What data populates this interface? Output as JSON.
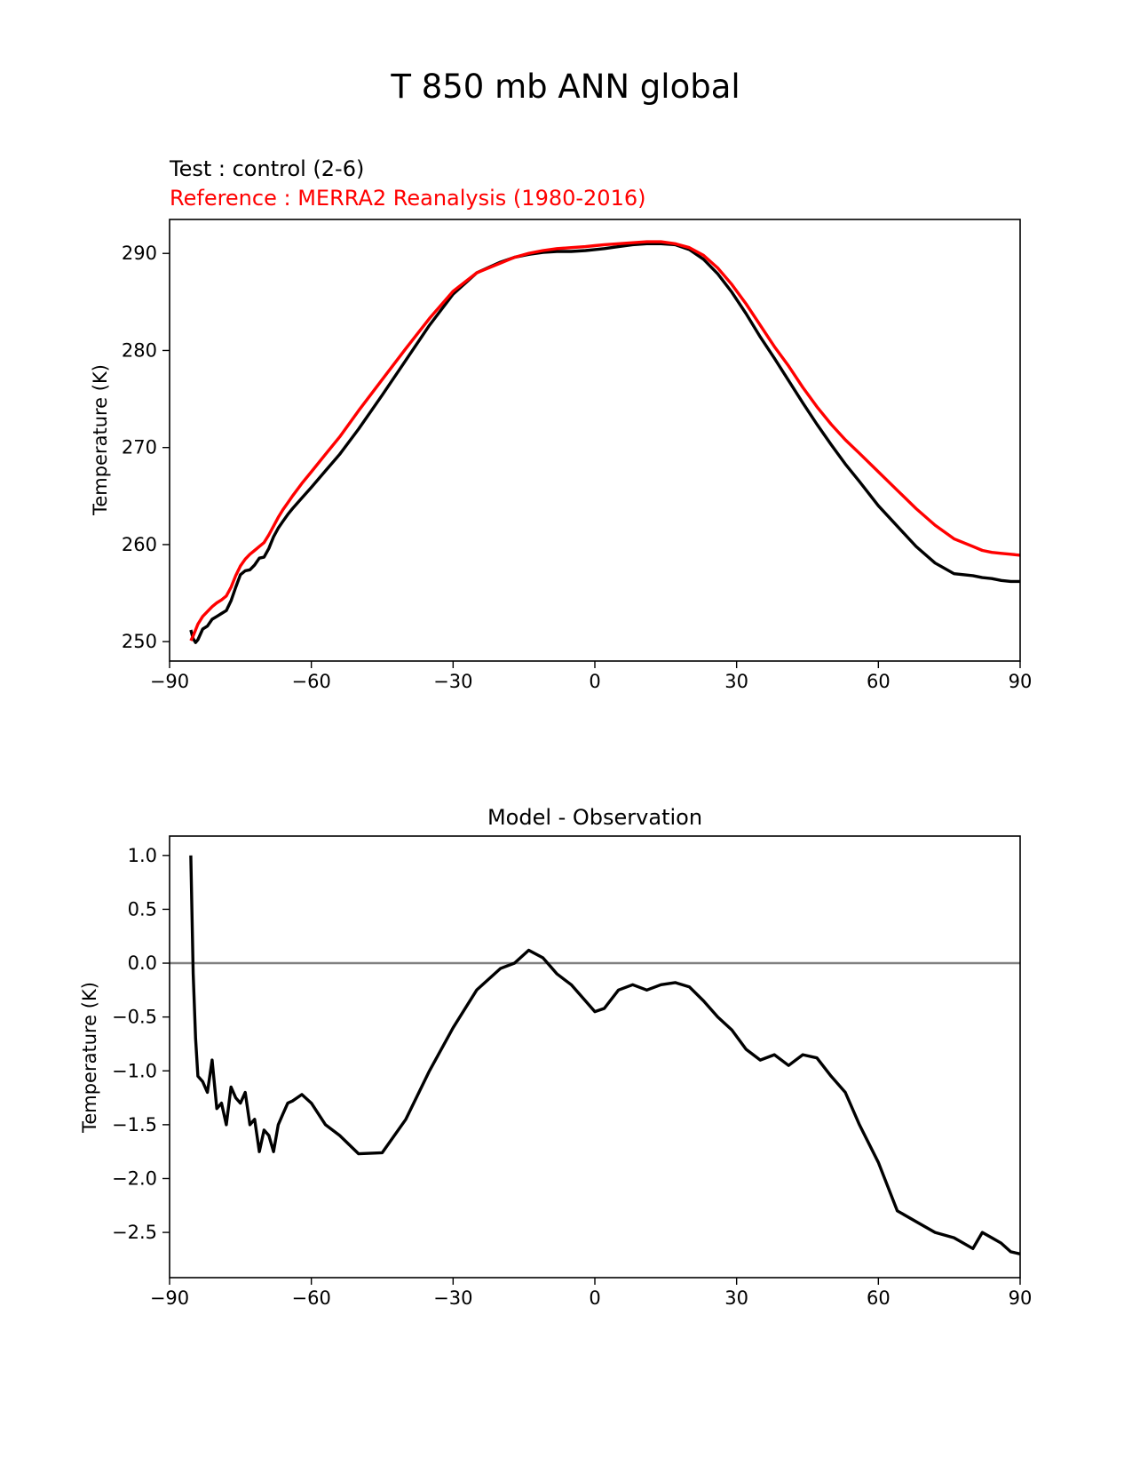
{
  "suptitle": "T 850 mb ANN global",
  "chart_data": [
    {
      "type": "line",
      "test_label": "Test : control (2-6)",
      "reference_label": "Reference : MERRA2 Reanalysis (1980-2016)",
      "xlabel": "",
      "ylabel": "Temperature (K)",
      "xlim": [
        -90,
        90
      ],
      "ylim": [
        248,
        293.5
      ],
      "xticks": [
        -90,
        -60,
        -30,
        0,
        30,
        60,
        90
      ],
      "xtick_labels": [
        "−90",
        "−60",
        "−30",
        "0",
        "30",
        "60",
        "90"
      ],
      "yticks": [
        250,
        260,
        270,
        280,
        290
      ],
      "ytick_labels": [
        "250",
        "260",
        "270",
        "280",
        "290"
      ],
      "series": [
        {
          "name": "Test : control (2-6)",
          "color": "#000000",
          "x": [
            -85.5,
            -85,
            -84.5,
            -84,
            -83,
            -82,
            -81,
            -80,
            -79,
            -78,
            -77,
            -76,
            -75,
            -74,
            -73,
            -72,
            -71,
            -70,
            -69,
            -68,
            -67,
            -66,
            -65,
            -64,
            -62,
            -60,
            -57,
            -54,
            -50,
            -45,
            -40,
            -35,
            -30,
            -25,
            -20,
            -17,
            -14,
            -11,
            -8,
            -5,
            -2,
            0,
            2,
            5,
            8,
            11,
            14,
            17,
            20,
            23,
            26,
            29,
            32,
            35,
            38,
            41,
            44,
            47,
            50,
            53,
            56,
            60,
            64,
            68,
            72,
            76,
            80,
            82,
            84,
            86,
            88,
            90
          ],
          "values": [
            251.2,
            250.3,
            249.9,
            250.2,
            251.3,
            251.6,
            252.3,
            252.6,
            252.9,
            253.2,
            254.2,
            255.6,
            256.9,
            257.3,
            257.4,
            257.9,
            258.6,
            258.7,
            259.6,
            260.8,
            261.7,
            262.4,
            263.1,
            263.7,
            264.8,
            265.9,
            267.6,
            269.3,
            271.9,
            275.4,
            279.0,
            282.6,
            285.8,
            288.0,
            289.1,
            289.6,
            289.9,
            290.1,
            290.2,
            290.2,
            290.3,
            290.4,
            290.5,
            290.7,
            290.9,
            291.0,
            291.0,
            290.9,
            290.4,
            289.4,
            287.9,
            286.0,
            283.8,
            281.4,
            279.2,
            276.9,
            274.6,
            272.4,
            270.3,
            268.3,
            266.5,
            264.0,
            261.9,
            259.8,
            258.1,
            257.0,
            256.8,
            256.6,
            256.5,
            256.3,
            256.2,
            256.2
          ]
        },
        {
          "name": "Reference : MERRA2 Reanalysis (1980-2016)",
          "color": "#ff0000",
          "x": [
            -85.5,
            -85,
            -84.5,
            -84,
            -83,
            -82,
            -81,
            -80,
            -79,
            -78,
            -77,
            -76,
            -75,
            -74,
            -73,
            -72,
            -71,
            -70,
            -69,
            -68,
            -67,
            -66,
            -65,
            -64,
            -62,
            -60,
            -57,
            -54,
            -50,
            -45,
            -40,
            -35,
            -30,
            -25,
            -20,
            -17,
            -14,
            -11,
            -8,
            -5,
            -2,
            0,
            2,
            5,
            8,
            11,
            14,
            17,
            20,
            23,
            26,
            29,
            32,
            35,
            38,
            41,
            44,
            47,
            50,
            53,
            56,
            60,
            64,
            68,
            72,
            76,
            80,
            82,
            84,
            86,
            88,
            90
          ],
          "values": [
            250.1,
            250.6,
            251.2,
            251.8,
            252.6,
            253.1,
            253.6,
            254.0,
            254.3,
            254.7,
            255.6,
            256.8,
            257.8,
            258.5,
            259.0,
            259.4,
            259.8,
            260.2,
            261.0,
            261.9,
            262.8,
            263.6,
            264.3,
            265.0,
            266.3,
            267.5,
            269.3,
            271.1,
            273.8,
            277.0,
            280.2,
            283.3,
            286.1,
            288.0,
            289.0,
            289.6,
            290.0,
            290.3,
            290.5,
            290.6,
            290.7,
            290.8,
            290.9,
            291.0,
            291.1,
            291.2,
            291.2,
            291.0,
            290.6,
            289.8,
            288.5,
            286.8,
            284.8,
            282.6,
            280.4,
            278.4,
            276.2,
            274.2,
            272.4,
            270.8,
            269.4,
            267.5,
            265.6,
            263.7,
            262.0,
            260.6,
            259.8,
            259.4,
            259.2,
            259.1,
            259.0,
            258.9
          ]
        }
      ]
    },
    {
      "type": "line",
      "title": "Model - Observation",
      "xlabel": "",
      "ylabel": "Temperature (K)",
      "xlim": [
        -90,
        90
      ],
      "ylim": [
        -2.92,
        1.18
      ],
      "xticks": [
        -90,
        -60,
        -30,
        0,
        30,
        60,
        90
      ],
      "xtick_labels": [
        "−90",
        "−60",
        "−30",
        "0",
        "30",
        "60",
        "90"
      ],
      "yticks": [
        1.0,
        0.5,
        0.0,
        -0.5,
        -1.0,
        -1.5,
        -2.0,
        -2.5
      ],
      "ytick_labels": [
        "1.0",
        "0.5",
        "0.0",
        "−0.5",
        "−1.0",
        "−1.5",
        "−2.0",
        "−2.5"
      ],
      "zero_line_color": "#808080",
      "series": [
        {
          "name": "Model - Observation",
          "color": "#000000",
          "x": [
            -85.5,
            -85,
            -84.5,
            -84,
            -83,
            -82,
            -81,
            -80,
            -79,
            -78,
            -77,
            -76,
            -75,
            -74,
            -73,
            -72,
            -71,
            -70,
            -69,
            -68,
            -67,
            -66,
            -65,
            -64,
            -62,
            -60,
            -57,
            -54,
            -50,
            -45,
            -40,
            -35,
            -30,
            -25,
            -20,
            -17,
            -14,
            -11,
            -8,
            -5,
            -2,
            0,
            2,
            5,
            8,
            11,
            14,
            17,
            20,
            23,
            26,
            29,
            32,
            35,
            38,
            41,
            44,
            47,
            50,
            53,
            56,
            60,
            64,
            68,
            72,
            76,
            80,
            82,
            84,
            86,
            88,
            90
          ],
          "values": [
            1.0,
            -0.1,
            -0.7,
            -1.05,
            -1.1,
            -1.2,
            -0.9,
            -1.35,
            -1.3,
            -1.5,
            -1.15,
            -1.25,
            -1.3,
            -1.2,
            -1.5,
            -1.45,
            -1.75,
            -1.55,
            -1.6,
            -1.75,
            -1.5,
            -1.4,
            -1.3,
            -1.28,
            -1.22,
            -1.3,
            -1.5,
            -1.6,
            -1.77,
            -1.76,
            -1.45,
            -1.0,
            -0.6,
            -0.25,
            -0.05,
            0.0,
            0.12,
            0.05,
            -0.1,
            -0.2,
            -0.35,
            -0.45,
            -0.42,
            -0.25,
            -0.2,
            -0.25,
            -0.2,
            -0.18,
            -0.22,
            -0.35,
            -0.5,
            -0.62,
            -0.8,
            -0.9,
            -0.85,
            -0.95,
            -0.85,
            -0.88,
            -1.05,
            -1.2,
            -1.5,
            -1.85,
            -2.3,
            -2.4,
            -2.5,
            -2.55,
            -2.65,
            -2.5,
            -2.55,
            -2.6,
            -2.68,
            -2.7
          ]
        }
      ]
    }
  ]
}
